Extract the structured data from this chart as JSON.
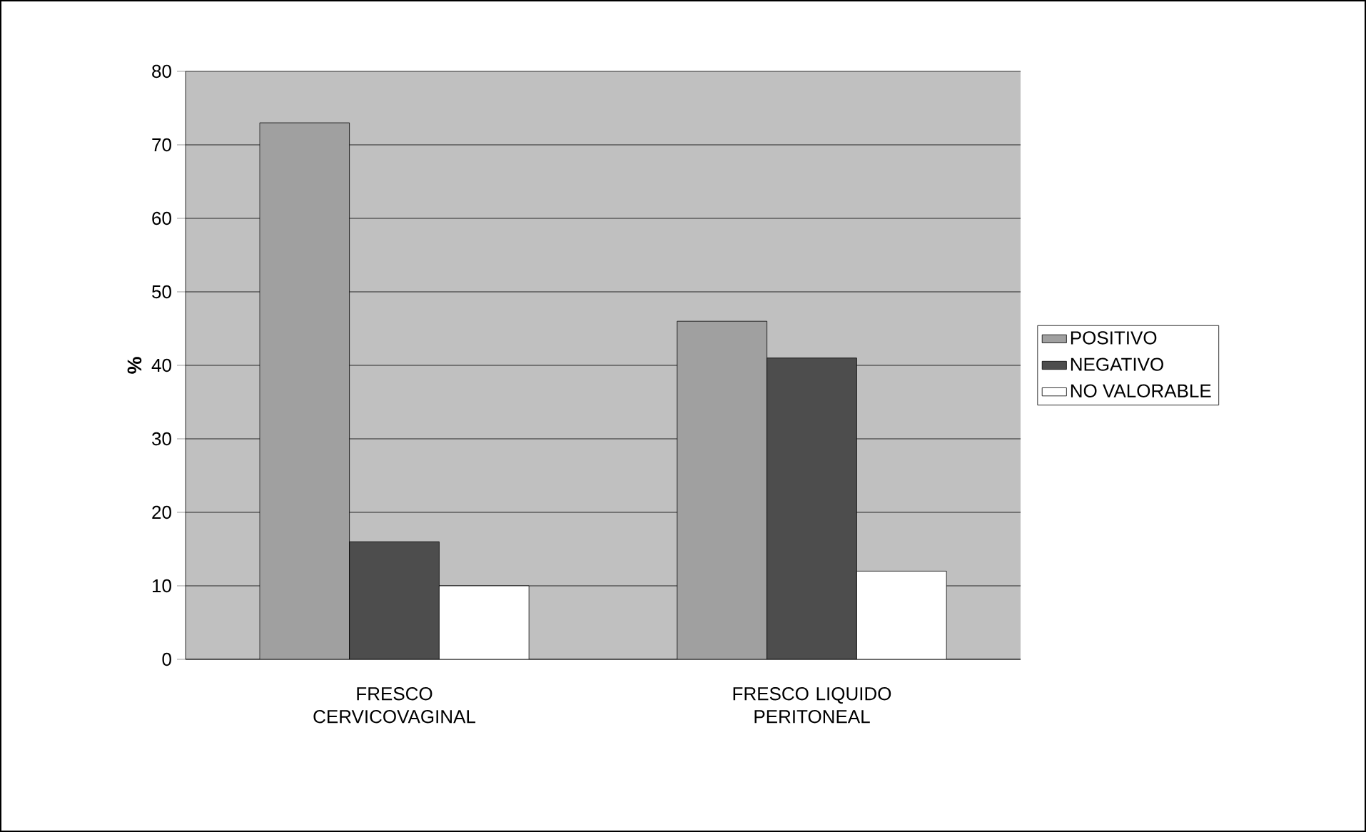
{
  "chart_data": {
    "type": "bar",
    "ylabel": "%",
    "categories": [
      "FRESCO CERVICOVAGINAL",
      "FRESCO LIQUIDO PERITONEAL"
    ],
    "series": [
      {
        "name": "POSITIVO",
        "color": "#a0a0a0",
        "values": [
          73,
          46
        ]
      },
      {
        "name": "NEGATIVO",
        "color": "#4d4d4d",
        "values": [
          16,
          41
        ]
      },
      {
        "name": "NO VALORABLE",
        "color": "#ffffff",
        "values": [
          10,
          12
        ]
      }
    ],
    "ylim": [
      0,
      80
    ],
    "yticks": [
      0,
      10,
      20,
      30,
      40,
      50,
      60,
      70,
      80
    ],
    "grid": "y",
    "legend": "right"
  }
}
